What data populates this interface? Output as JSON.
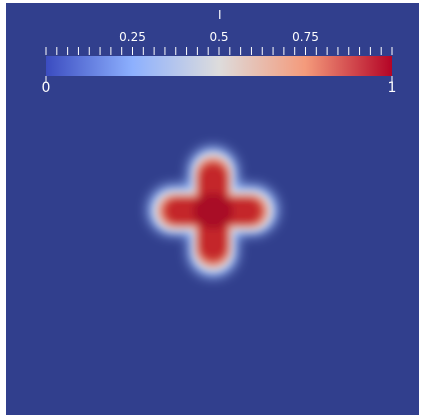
{
  "chart_data": {
    "type": "heatmap",
    "title": "I",
    "colorbar": {
      "min": 0,
      "max": 1,
      "min_label": "0",
      "max_label": "1",
      "tick_labels": [
        {
          "value": 0.25,
          "label": "0.25"
        },
        {
          "value": 0.5,
          "label": "0.5"
        },
        {
          "value": 0.75,
          "label": "0.75"
        }
      ],
      "colormap": [
        "#3b4cc0",
        "#8db0fe",
        "#dddcdc",
        "#f49a7b",
        "#b40426"
      ],
      "minor_tick_count": 33,
      "placement": "top"
    },
    "field": {
      "shape": "four-lobed cross",
      "background_value": 0,
      "peak_value": 1,
      "background_color": "#313f8d"
    }
  }
}
